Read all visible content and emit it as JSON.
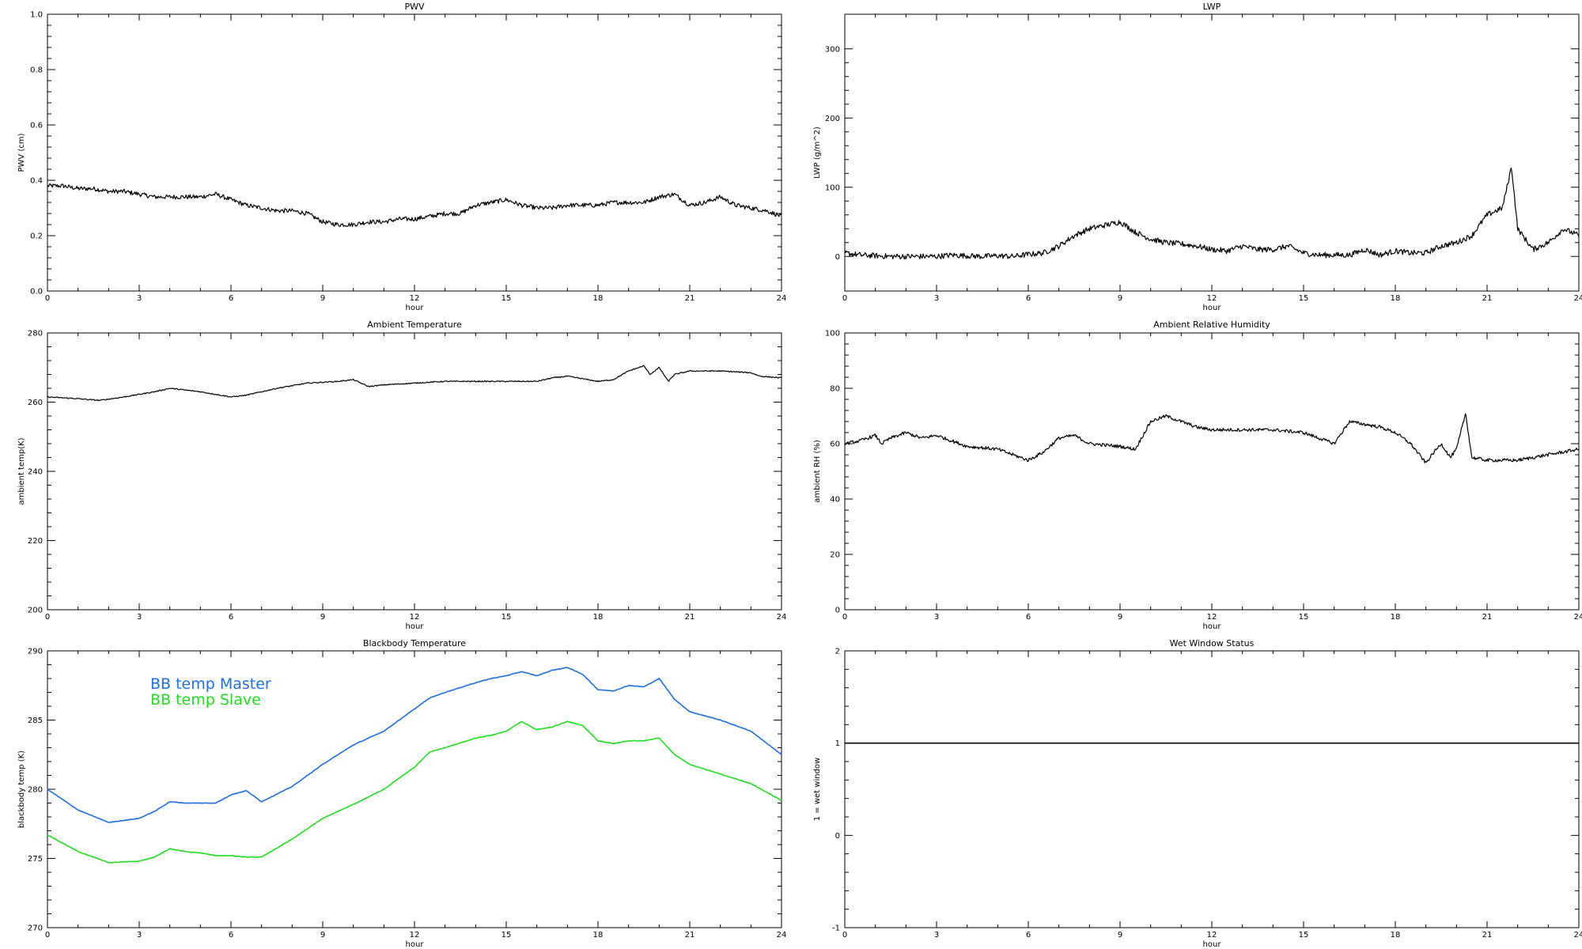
{
  "chart_data": [
    {
      "type": "line",
      "title": "PWV",
      "xlabel": "hour",
      "ylabel": "PWV (cm)",
      "xlim": [
        0,
        24
      ],
      "ylim": [
        0,
        1
      ],
      "xticks": [
        0,
        3,
        6,
        9,
        12,
        15,
        18,
        21,
        24
      ],
      "yticks": [
        0.0,
        0.2,
        0.4,
        0.6,
        0.8,
        1.0
      ],
      "ytick_labels": [
        "0.0",
        "0.2",
        "0.4",
        "0.6",
        "0.8",
        "1.0"
      ],
      "noise": 0.008,
      "series": [
        {
          "color": "#000000",
          "x": [
            0,
            0.5,
            1,
            1.5,
            2,
            2.5,
            3,
            3.5,
            4,
            4.5,
            5,
            5.5,
            6,
            6.5,
            7,
            7.5,
            8,
            8.5,
            9,
            9.5,
            10,
            10.5,
            11,
            11.5,
            12,
            12.5,
            13,
            13.5,
            14,
            14.5,
            15,
            15.5,
            16,
            16.5,
            17,
            17.5,
            18,
            18.5,
            19,
            19.5,
            20,
            20.5,
            21,
            21.5,
            22,
            22.5,
            23,
            23.5,
            24
          ],
          "values": [
            0.38,
            0.38,
            0.37,
            0.37,
            0.36,
            0.36,
            0.35,
            0.34,
            0.34,
            0.34,
            0.34,
            0.35,
            0.33,
            0.31,
            0.3,
            0.29,
            0.29,
            0.28,
            0.25,
            0.24,
            0.24,
            0.25,
            0.25,
            0.26,
            0.26,
            0.27,
            0.28,
            0.28,
            0.31,
            0.32,
            0.33,
            0.31,
            0.3,
            0.3,
            0.31,
            0.31,
            0.31,
            0.32,
            0.32,
            0.32,
            0.34,
            0.35,
            0.31,
            0.32,
            0.34,
            0.31,
            0.3,
            0.29,
            0.27
          ]
        }
      ]
    },
    {
      "type": "line",
      "title": "LWP",
      "xlabel": "hour",
      "ylabel": "LWP (g/m^2)",
      "xlim": [
        0,
        24
      ],
      "ylim": [
        -50,
        350
      ],
      "xticks": [
        0,
        3,
        6,
        9,
        12,
        15,
        18,
        21,
        24
      ],
      "yticks": [
        0,
        100,
        200,
        300
      ],
      "ytick_labels": [
        "0",
        "100",
        "200",
        "300"
      ],
      "noise": 4,
      "series": [
        {
          "color": "#000000",
          "x": [
            0,
            0.5,
            1,
            1.5,
            2,
            2.5,
            3,
            3.5,
            4,
            4.5,
            5,
            5.5,
            6,
            6.5,
            7,
            7.5,
            8,
            8.5,
            9,
            9.5,
            10,
            10.5,
            11,
            11.5,
            12,
            12.5,
            13,
            13.5,
            14,
            14.5,
            15,
            15.5,
            16,
            16.5,
            17,
            17.5,
            18,
            18.5,
            19,
            19.5,
            20,
            20.5,
            21,
            21.5,
            21.8,
            22,
            22.5,
            23,
            23.5,
            24
          ],
          "values": [
            5,
            2,
            1,
            0,
            0,
            0,
            0,
            2,
            1,
            0,
            1,
            0,
            3,
            5,
            15,
            30,
            40,
            45,
            50,
            35,
            25,
            20,
            18,
            15,
            10,
            8,
            15,
            10,
            10,
            15,
            5,
            2,
            2,
            2,
            10,
            2,
            8,
            5,
            5,
            15,
            20,
            30,
            60,
            70,
            130,
            40,
            10,
            20,
            40,
            30
          ]
        }
      ]
    },
    {
      "type": "line",
      "title": "Ambient Temperature",
      "xlabel": "hour",
      "ylabel": "ambient temp(K)",
      "xlim": [
        0,
        24
      ],
      "ylim": [
        200,
        280
      ],
      "xticks": [
        0,
        3,
        6,
        9,
        12,
        15,
        18,
        21,
        24
      ],
      "yticks": [
        200,
        220,
        240,
        260,
        280
      ],
      "ytick_labels": [
        "200",
        "220",
        "240",
        "260",
        "280"
      ],
      "noise": 0.15,
      "series": [
        {
          "color": "#000000",
          "x": [
            0,
            1,
            1.7,
            2.5,
            3.5,
            4,
            5,
            6,
            6.5,
            7.5,
            8.5,
            9.5,
            10,
            10.5,
            11,
            12,
            13,
            14,
            15,
            16,
            16.5,
            17,
            18,
            18.5,
            19,
            19.5,
            19.7,
            20,
            20.3,
            20.5,
            21,
            22,
            23,
            23.3,
            24
          ],
          "values": [
            261.5,
            261,
            260.5,
            261.5,
            263,
            264,
            263,
            261.5,
            262,
            264,
            265.5,
            266,
            266.5,
            264.5,
            265,
            265.5,
            266,
            266,
            266,
            266,
            267,
            267.5,
            266,
            266.5,
            269,
            270.5,
            268,
            270,
            266,
            268,
            269,
            269,
            268.5,
            267.5,
            267
          ]
        }
      ]
    },
    {
      "type": "line",
      "title": "Ambient Relative Humidity",
      "xlabel": "hour",
      "ylabel": "ambient RH (%)",
      "xlim": [
        0,
        24
      ],
      "ylim": [
        0,
        100
      ],
      "xticks": [
        0,
        3,
        6,
        9,
        12,
        15,
        18,
        21,
        24
      ],
      "yticks": [
        0,
        20,
        40,
        60,
        80,
        100
      ],
      "ytick_labels": [
        "0",
        "20",
        "40",
        "60",
        "80",
        "100"
      ],
      "noise": 0.6,
      "series": [
        {
          "color": "#000000",
          "x": [
            0,
            0.5,
            1,
            1.2,
            1.5,
            2,
            2.5,
            3,
            3.5,
            4,
            5,
            6,
            6.5,
            7,
            7.5,
            8,
            9,
            9.5,
            10,
            10.5,
            11,
            11.5,
            12,
            13,
            14,
            15,
            15.5,
            16,
            16.5,
            17,
            17.5,
            18,
            18.5,
            19,
            19.2,
            19.5,
            19.8,
            20,
            20.3,
            20.5,
            21,
            22,
            22.5,
            23,
            23.5,
            24
          ],
          "values": [
            60,
            61,
            63,
            60,
            62,
            64,
            62,
            63,
            61,
            59,
            58,
            54,
            57,
            62,
            63,
            60,
            59,
            58,
            68,
            70,
            68,
            66,
            65,
            65,
            65,
            64,
            62,
            60,
            68,
            67,
            66,
            64,
            60,
            53,
            56,
            60,
            55,
            58,
            71,
            55,
            54,
            54,
            55,
            56,
            57,
            58
          ]
        }
      ]
    },
    {
      "type": "line",
      "title": "Blackbody Temperature",
      "xlabel": "hour",
      "ylabel": "blackbody temp (K)",
      "xlim": [
        0,
        24
      ],
      "ylim": [
        270,
        290
      ],
      "xticks": [
        0,
        3,
        6,
        9,
        12,
        15,
        18,
        21,
        24
      ],
      "yticks": [
        270,
        275,
        280,
        285,
        290
      ],
      "ytick_labels": [
        "270",
        "275",
        "280",
        "285",
        "290"
      ],
      "noise": 0.02,
      "legend_position": "top-left",
      "series": [
        {
          "name": "BB temp Master",
          "color": "#1f6fe0",
          "x": [
            0,
            1,
            2,
            3,
            3.5,
            4,
            4.5,
            5,
            5.5,
            6,
            6.5,
            7,
            8,
            9,
            10,
            11,
            12,
            12.5,
            13,
            14,
            14.5,
            15,
            15.5,
            16,
            16.5,
            17,
            17.5,
            18,
            18.5,
            19,
            19.5,
            20,
            20.5,
            21,
            22,
            23,
            24
          ],
          "values": [
            280,
            278.5,
            277.6,
            277.9,
            278.4,
            279.1,
            279,
            279,
            279,
            279.6,
            279.9,
            279.1,
            280.2,
            281.8,
            283.2,
            284.2,
            285.8,
            286.6,
            287,
            287.7,
            288,
            288.2,
            288.5,
            288.2,
            288.6,
            288.8,
            288.3,
            287.2,
            287.1,
            287.5,
            287.4,
            288,
            286.5,
            285.6,
            285,
            284.2,
            282.5
          ]
        },
        {
          "name": "BB temp Slave",
          "color": "#22dd22",
          "x": [
            0,
            1,
            2,
            3,
            3.5,
            4,
            4.5,
            5,
            5.5,
            6,
            6.5,
            7,
            8,
            9,
            10,
            11,
            12,
            12.5,
            13,
            14,
            14.5,
            15,
            15.5,
            16,
            16.5,
            17,
            17.5,
            18,
            18.5,
            19,
            19.5,
            20,
            20.5,
            21,
            22,
            23,
            24
          ],
          "values": [
            276.7,
            275.5,
            274.7,
            274.8,
            275.1,
            275.7,
            275.5,
            275.4,
            275.2,
            275.2,
            275.1,
            275.1,
            276.4,
            277.9,
            278.9,
            280,
            281.6,
            282.7,
            283,
            283.7,
            283.9,
            284.2,
            284.9,
            284.3,
            284.5,
            284.9,
            284.6,
            283.5,
            283.3,
            283.5,
            283.5,
            283.7,
            282.5,
            281.8,
            281.1,
            280.4,
            279.2
          ]
        }
      ]
    },
    {
      "type": "line",
      "title": "Wet Window Status",
      "xlabel": "hour",
      "ylabel": "1 = wet window",
      "xlim": [
        0,
        24
      ],
      "ylim": [
        -1,
        2
      ],
      "xticks": [
        0,
        3,
        6,
        9,
        12,
        15,
        18,
        21,
        24
      ],
      "yticks": [
        -1,
        0,
        1,
        2
      ],
      "ytick_labels": [
        "-1",
        "0",
        "1",
        "2"
      ],
      "noise": 0,
      "series": [
        {
          "color": "#000000",
          "x": [
            0,
            24
          ],
          "values": [
            1,
            1
          ]
        }
      ]
    }
  ]
}
